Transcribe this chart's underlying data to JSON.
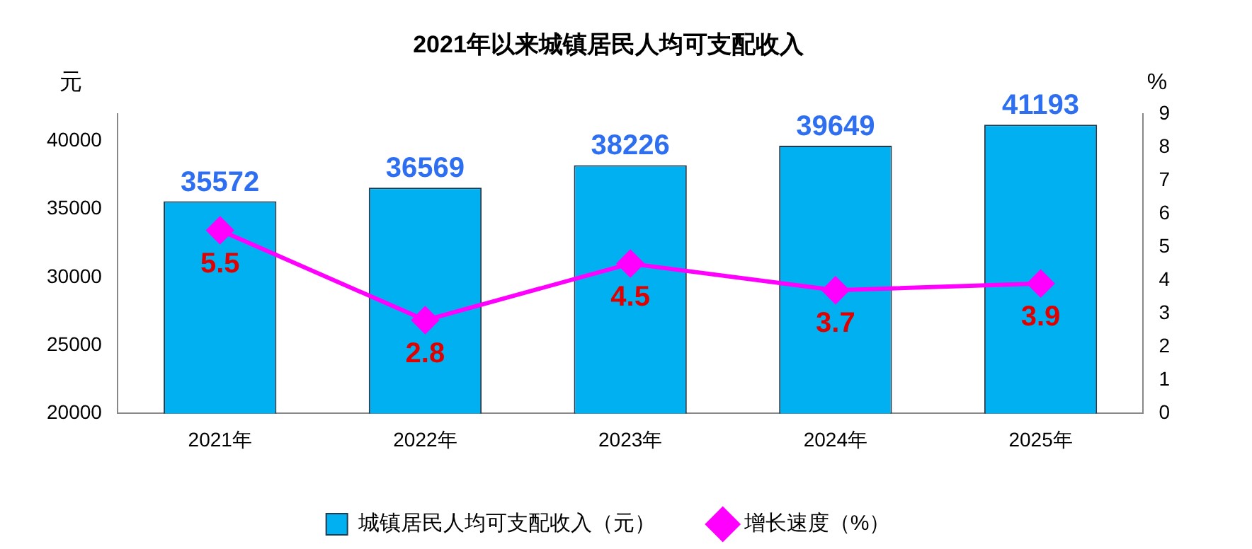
{
  "chart_data": {
    "type": "bar",
    "title": "2021年以来城镇居民人均可支配收入",
    "ylabel": "元",
    "y2label": "%",
    "categories": [
      "2021年",
      "2022年",
      "2023年",
      "2024年",
      "2025年"
    ],
    "series": [
      {
        "name": "城镇居民人均可支配收入（元）",
        "color": "#00b0f0",
        "values": [
          35572,
          36569,
          38226,
          39649,
          41193
        ]
      },
      {
        "name": "增长速度（%）",
        "type": "line",
        "axis": "y2",
        "color": "#ff00ff",
        "marker": "diamond",
        "values": [
          5.5,
          2.8,
          4.5,
          3.7,
          3.9
        ]
      }
    ],
    "ylim": [
      20000,
      42000
    ],
    "yticks": [
      20000,
      25000,
      30000,
      35000,
      40000
    ],
    "y2lim": [
      0,
      9
    ],
    "y2ticks": [
      0,
      1,
      2,
      3,
      4,
      5,
      6,
      7,
      8,
      9
    ],
    "data_labels": true,
    "grid": false,
    "legend": "bottom"
  }
}
